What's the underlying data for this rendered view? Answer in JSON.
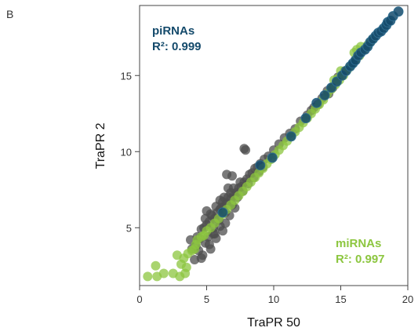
{
  "panel_label": "B",
  "chart_data": {
    "type": "scatter",
    "xlabel": "TraPR 50",
    "ylabel": "TraPR 2",
    "xlim": [
      0,
      20
    ],
    "ylim": [
      1.2,
      19.6
    ],
    "x_ticks": [
      0,
      5,
      10,
      15,
      20
    ],
    "y_ticks": [
      5,
      10,
      15
    ],
    "grid": false,
    "annotations": [
      {
        "series": "piRNAs",
        "line1": "piRNAs",
        "line2": "R²: 0.999",
        "color": "#144a6b",
        "placement": "top-left"
      },
      {
        "series": "miRNAs",
        "line1": "miRNAs",
        "line2": "R²: 0.997",
        "color": "#8cc63f",
        "placement": "bottom-right"
      }
    ],
    "series": [
      {
        "name": "other",
        "color": "#4d4d4d",
        "points": [
          [
            7.9,
            10.1
          ],
          [
            7.8,
            10.2
          ],
          [
            6.5,
            8.5
          ],
          [
            6.9,
            8.4
          ],
          [
            6.2,
            6.7
          ],
          [
            5.5,
            4.6
          ],
          [
            4.7,
            3.2
          ],
          [
            4.2,
            3.8
          ],
          [
            3.8,
            4.2
          ],
          [
            3.9,
            3.6
          ],
          [
            4.5,
            4.3
          ],
          [
            4.3,
            4.4
          ],
          [
            4.6,
            4.9
          ],
          [
            4.8,
            5.0
          ],
          [
            5.0,
            5.2
          ],
          [
            5.2,
            5.4
          ],
          [
            4.9,
            5.6
          ],
          [
            5.6,
            5.6
          ],
          [
            5.4,
            5.8
          ],
          [
            5.8,
            6.0
          ],
          [
            6.0,
            6.2
          ],
          [
            6.3,
            6.4
          ],
          [
            6.5,
            6.6
          ],
          [
            6.1,
            6.3
          ],
          [
            6.8,
            6.9
          ],
          [
            7.0,
            7.1
          ],
          [
            6.6,
            7.0
          ],
          [
            7.2,
            7.3
          ],
          [
            7.4,
            7.6
          ],
          [
            7.6,
            7.7
          ],
          [
            7.8,
            8.0
          ],
          [
            8.0,
            8.2
          ],
          [
            8.2,
            8.5
          ],
          [
            8.4,
            8.6
          ],
          [
            8.6,
            8.9
          ],
          [
            8.8,
            9.0
          ],
          [
            9.0,
            9.2
          ],
          [
            9.3,
            9.5
          ],
          [
            9.6,
            9.7
          ],
          [
            10.0,
            10.1
          ],
          [
            5.1,
            4.4
          ],
          [
            5.5,
            5.0
          ],
          [
            5.9,
            5.5
          ],
          [
            6.4,
            6.0
          ],
          [
            6.9,
            6.5
          ],
          [
            7.3,
            7.0
          ],
          [
            7.7,
            7.4
          ],
          [
            8.1,
            7.9
          ],
          [
            8.5,
            8.3
          ],
          [
            6.0,
            5.1
          ],
          [
            6.2,
            4.8
          ],
          [
            5.7,
            4.3
          ],
          [
            6.7,
            5.8
          ],
          [
            7.1,
            6.3
          ],
          [
            5.3,
            3.6
          ],
          [
            4.6,
            3.0
          ],
          [
            5.2,
            3.9
          ],
          [
            6.4,
            5.3
          ],
          [
            5.7,
            6.4
          ],
          [
            6.0,
            6.8
          ],
          [
            6.3,
            7.0
          ],
          [
            5.3,
            5.9
          ],
          [
            7.0,
            7.6
          ],
          [
            7.5,
            8.0
          ],
          [
            6.8,
            7.3
          ],
          [
            4.1,
            2.9
          ],
          [
            4.9,
            4.0
          ],
          [
            5.6,
            4.6
          ],
          [
            4.4,
            3.5
          ],
          [
            5.0,
            6.1
          ],
          [
            6.6,
            7.6
          ],
          [
            8.9,
            8.7
          ],
          [
            9.2,
            9.0
          ],
          [
            10.4,
            10.5
          ],
          [
            10.8,
            10.9
          ],
          [
            11.2,
            11.2
          ],
          [
            11.6,
            11.5
          ],
          [
            12.0,
            12.0
          ],
          [
            12.5,
            12.4
          ],
          [
            13.0,
            12.9
          ],
          [
            13.3,
            13.1
          ],
          [
            12.8,
            12.7
          ],
          [
            13.6,
            13.5
          ],
          [
            14.0,
            14.0
          ],
          [
            14.4,
            14.2
          ],
          [
            14.8,
            14.9
          ],
          [
            15.3,
            15.3
          ],
          [
            14.1,
            13.8
          ]
        ]
      },
      {
        "name": "miRNAs",
        "color": "#8cc63f",
        "points": [
          [
            0.6,
            1.8
          ],
          [
            1.3,
            1.8
          ],
          [
            1.8,
            2.0
          ],
          [
            2.5,
            2.0
          ],
          [
            1.2,
            2.5
          ],
          [
            3.0,
            1.8
          ],
          [
            3.4,
            2.0
          ],
          [
            3.5,
            2.4
          ],
          [
            3.1,
            2.6
          ],
          [
            3.3,
            3.0
          ],
          [
            2.8,
            3.2
          ],
          [
            3.6,
            3.3
          ],
          [
            3.9,
            3.5
          ],
          [
            4.1,
            3.6
          ],
          [
            4.2,
            3.9
          ],
          [
            4.3,
            4.2
          ],
          [
            4.6,
            4.4
          ],
          [
            4.8,
            4.5
          ],
          [
            5.0,
            4.8
          ],
          [
            5.3,
            5.0
          ],
          [
            5.6,
            5.3
          ],
          [
            5.9,
            5.6
          ],
          [
            6.2,
            5.9
          ],
          [
            6.5,
            6.2
          ],
          [
            6.8,
            6.5
          ],
          [
            7.1,
            6.8
          ],
          [
            7.4,
            7.1
          ],
          [
            7.7,
            7.4
          ],
          [
            8.0,
            7.7
          ],
          [
            8.3,
            8.0
          ],
          [
            8.6,
            8.3
          ],
          [
            8.9,
            8.6
          ],
          [
            9.2,
            8.9
          ],
          [
            9.5,
            9.2
          ],
          [
            9.8,
            9.5
          ],
          [
            10.1,
            9.8
          ],
          [
            10.4,
            10.1
          ],
          [
            10.7,
            10.4
          ],
          [
            11.0,
            10.7
          ],
          [
            11.3,
            11.0
          ],
          [
            11.6,
            11.3
          ],
          [
            11.9,
            11.6
          ],
          [
            12.2,
            11.9
          ],
          [
            12.5,
            12.2
          ],
          [
            12.8,
            12.5
          ],
          [
            13.1,
            12.8
          ],
          [
            13.4,
            13.1
          ],
          [
            13.7,
            13.4
          ],
          [
            14.0,
            13.8
          ],
          [
            14.3,
            14.1
          ],
          [
            14.6,
            14.4
          ],
          [
            14.9,
            14.7
          ],
          [
            15.2,
            15.0
          ],
          [
            15.5,
            15.4
          ],
          [
            15.8,
            15.7
          ],
          [
            16.1,
            16.0
          ],
          [
            16.4,
            16.3
          ],
          [
            16.7,
            16.7
          ],
          [
            17.0,
            17.0
          ],
          [
            17.3,
            17.3
          ],
          [
            14.5,
            14.7
          ],
          [
            14.8,
            14.8
          ],
          [
            15.0,
            15.3
          ],
          [
            16.0,
            16.5
          ],
          [
            16.2,
            16.7
          ],
          [
            16.5,
            16.9
          ]
        ]
      },
      {
        "name": "piRNAs",
        "color": "#144a6b",
        "points": [
          [
            6.2,
            6.0
          ],
          [
            9.0,
            9.1
          ],
          [
            9.9,
            9.6
          ],
          [
            11.3,
            11.0
          ],
          [
            12.4,
            12.2
          ],
          [
            13.2,
            13.2
          ],
          [
            13.8,
            13.7
          ],
          [
            14.3,
            14.2
          ],
          [
            14.7,
            14.6
          ],
          [
            15.1,
            15.0
          ],
          [
            15.4,
            15.3
          ],
          [
            15.7,
            15.6
          ],
          [
            15.9,
            15.8
          ],
          [
            16.1,
            16.0
          ],
          [
            16.3,
            16.3
          ],
          [
            16.5,
            16.5
          ],
          [
            16.8,
            16.7
          ],
          [
            17.0,
            16.9
          ],
          [
            17.2,
            17.2
          ],
          [
            17.4,
            17.4
          ],
          [
            17.6,
            17.6
          ],
          [
            17.8,
            17.8
          ],
          [
            18.0,
            17.9
          ],
          [
            18.2,
            18.1
          ],
          [
            18.4,
            18.3
          ],
          [
            18.5,
            18.5
          ],
          [
            18.7,
            18.6
          ],
          [
            18.9,
            18.9
          ],
          [
            19.3,
            19.2
          ]
        ]
      }
    ]
  }
}
